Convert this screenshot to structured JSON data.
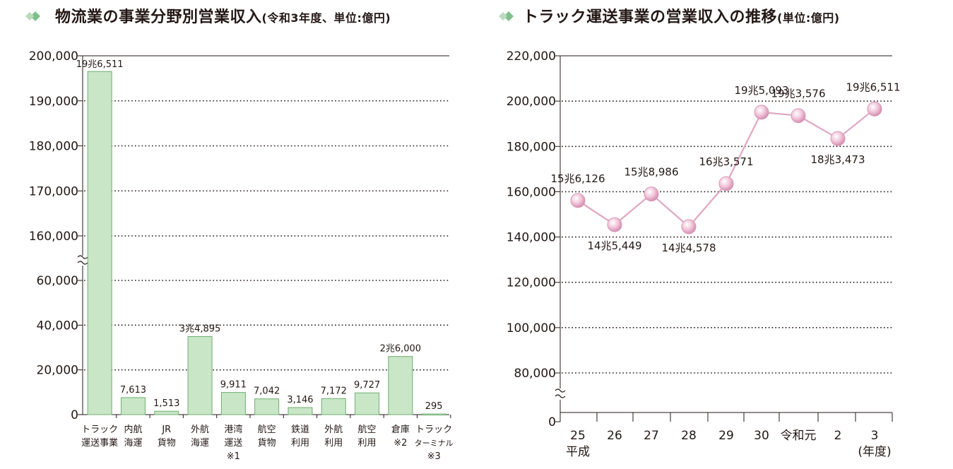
{
  "colors": {
    "accent_green": "#7fc08a",
    "bar_fill": "#c9e6c7",
    "bar_stroke": "#6fae72",
    "line_pink": "#e0a6c1",
    "marker_fill": "#f4cfe0",
    "grid": "#231815"
  },
  "left": {
    "title": "物流業の事業分野別営業収入",
    "unit": "(令和3年度、単位:億円)",
    "icon": "diamond-icon"
  },
  "right": {
    "title": "トラック運送事業の営業収入の推移",
    "unit": "(単位:億円)",
    "icon": "diamond-icon"
  },
  "chart_data": [
    {
      "type": "bar",
      "title": "物流業の事業分野別営業収入",
      "unit": "(令和3年度、単位:億円)",
      "axis_break": [
        60000,
        160000
      ],
      "ylim": [
        0,
        200000
      ],
      "yticks": [
        "200,000",
        "190,000",
        "180,000",
        "170,000",
        "160,000",
        "60,000",
        "40,000",
        "20,000",
        "0"
      ],
      "ytick_values": [
        200000,
        190000,
        180000,
        170000,
        160000,
        60000,
        40000,
        20000,
        0
      ],
      "grid": "dotted horizontal",
      "categories": [
        [
          "トラック",
          "運送事業"
        ],
        [
          "内航",
          "海運"
        ],
        [
          "JR",
          "貨物"
        ],
        [
          "外航",
          "海運"
        ],
        [
          "港湾",
          "運送",
          "※1"
        ],
        [
          "航空",
          "貨物"
        ],
        [
          "鉄道",
          "利用"
        ],
        [
          "外航",
          "利用"
        ],
        [
          "航空",
          "利用"
        ],
        [
          "倉庫",
          "※2"
        ],
        [
          "トラック",
          "ターミナル",
          "※3"
        ]
      ],
      "values": [
        196511,
        7613,
        1513,
        34895,
        9911,
        7042,
        3146,
        7172,
        9727,
        26000,
        295
      ],
      "data_labels": [
        "19兆6,511",
        "7,613",
        "1,513",
        "3兆4,895",
        "9,911",
        "7,042",
        "3,146",
        "7,172",
        "9,727",
        "2兆6,000",
        "295"
      ]
    },
    {
      "type": "line",
      "title": "トラック運送事業の営業収入の推移",
      "unit": "(単位:億円)",
      "axis_break": [
        0,
        80000
      ],
      "ylim": [
        80000,
        220000
      ],
      "yticks": [
        "220,000",
        "200,000",
        "180,000",
        "160,000",
        "140,000",
        "120,000",
        "100,000",
        "80,000",
        "0"
      ],
      "ytick_values": [
        220000,
        200000,
        180000,
        160000,
        140000,
        120000,
        100000,
        80000,
        0
      ],
      "grid": "dotted horizontal",
      "x": [
        "25",
        "26",
        "27",
        "28",
        "29",
        "30",
        "令和元",
        "2",
        "3"
      ],
      "x_sub": [
        "平成",
        "",
        "",
        "",
        "",
        "",
        "",
        "",
        "(年度)"
      ],
      "values": [
        156126,
        145449,
        158986,
        144578,
        163571,
        195093,
        193576,
        183473,
        196511
      ],
      "data_labels": [
        "15兆6,126",
        "14兆5,449",
        "15兆8,986",
        "14兆4,578",
        "16兆3,571",
        "19兆5,093",
        "19兆3,576",
        "18兆3,473",
        "19兆6,511"
      ],
      "label_pos": [
        "above",
        "below",
        "above",
        "below",
        "above",
        "above",
        "above",
        "below",
        "above"
      ]
    }
  ]
}
